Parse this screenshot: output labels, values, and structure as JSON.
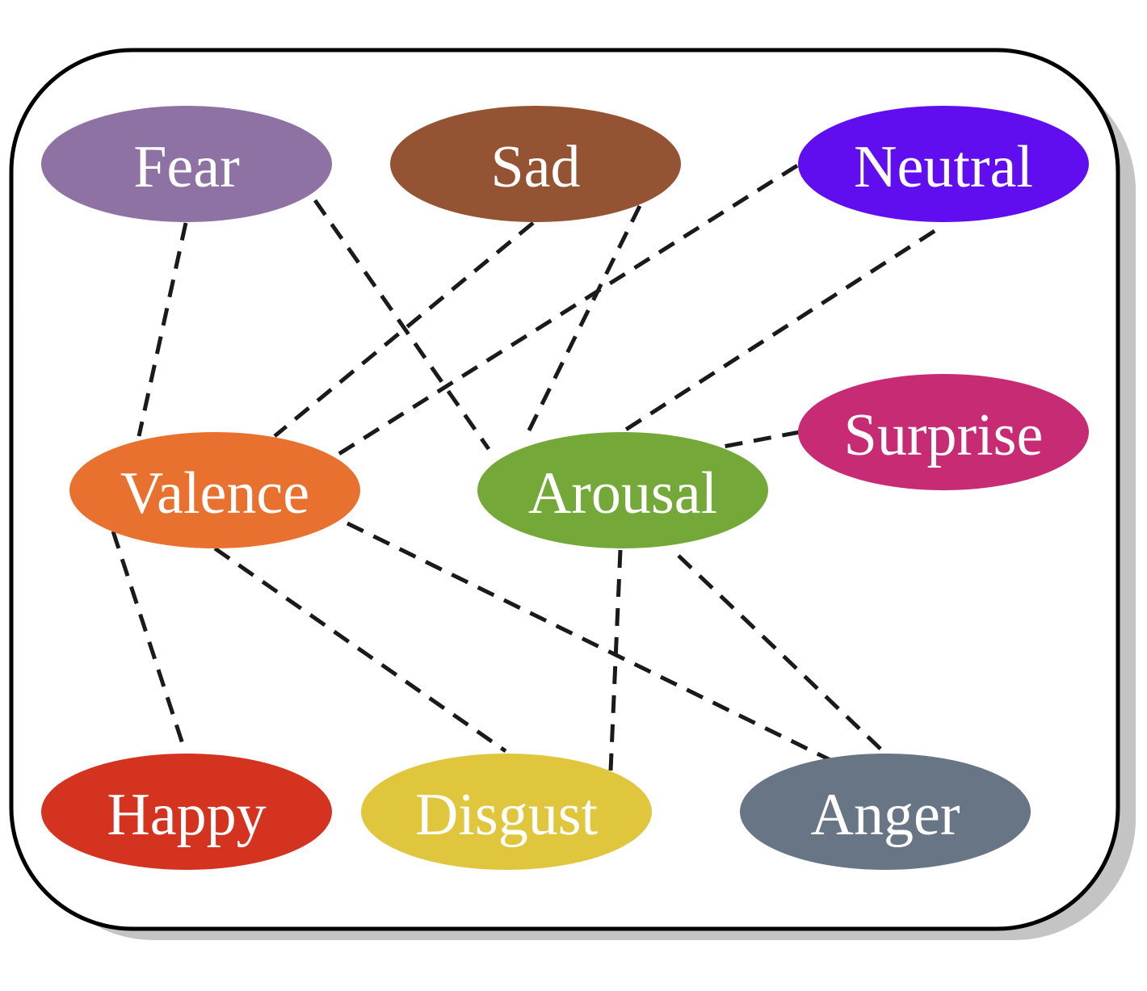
{
  "diagram": {
    "nodes": [
      {
        "id": "fear",
        "label": "Fear",
        "color": "#8e72a4"
      },
      {
        "id": "sad",
        "label": "Sad",
        "color": "#945434"
      },
      {
        "id": "neutral",
        "label": "Neutral",
        "color": "#600ef0"
      },
      {
        "id": "valence",
        "label": "Valence",
        "color": "#e8712f"
      },
      {
        "id": "arousal",
        "label": "Arousal",
        "color": "#74a838"
      },
      {
        "id": "surprise",
        "label": "Surprise",
        "color": "#c62b73"
      },
      {
        "id": "happy",
        "label": "Happy",
        "color": "#d4341f"
      },
      {
        "id": "disgust",
        "label": "Disgust",
        "color": "#e0c63c"
      },
      {
        "id": "anger",
        "label": "Anger",
        "color": "#687585"
      }
    ],
    "edges": [
      {
        "from": "fear",
        "to": "valence"
      },
      {
        "from": "fear",
        "to": "arousal"
      },
      {
        "from": "sad",
        "to": "valence"
      },
      {
        "from": "sad",
        "to": "arousal"
      },
      {
        "from": "neutral",
        "to": "valence"
      },
      {
        "from": "neutral",
        "to": "arousal"
      },
      {
        "from": "surprise",
        "to": "arousal"
      },
      {
        "from": "valence",
        "to": "happy"
      },
      {
        "from": "valence",
        "to": "disgust"
      },
      {
        "from": "valence",
        "to": "anger"
      },
      {
        "from": "arousal",
        "to": "disgust"
      },
      {
        "from": "arousal",
        "to": "anger"
      }
    ],
    "edge_style": "dashed",
    "frame": "rounded-rectangle-with-shadow"
  }
}
